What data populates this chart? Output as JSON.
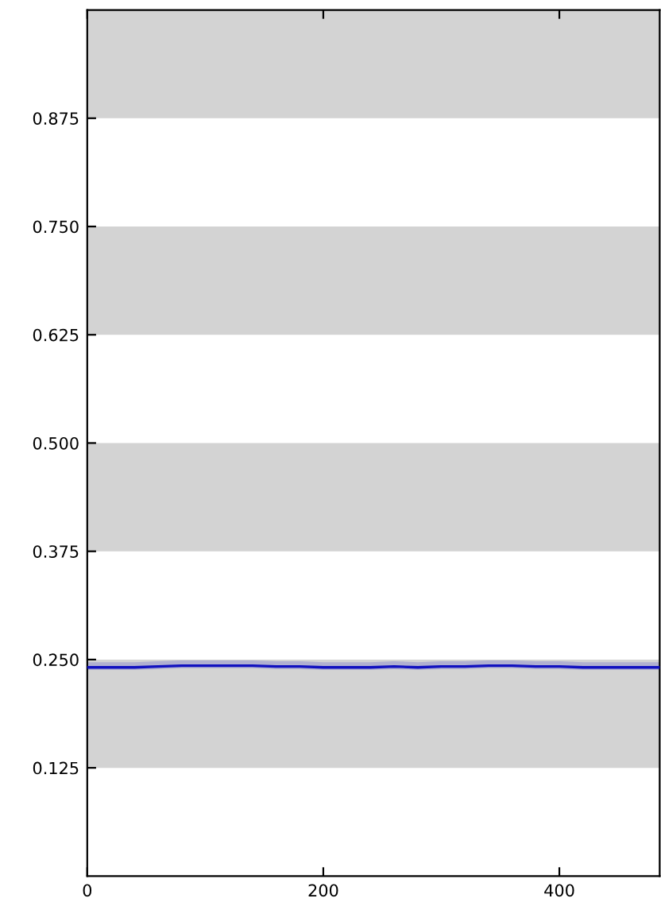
{
  "chart_data": {
    "type": "line",
    "xlim": [
      0,
      485
    ],
    "ylim": [
      0,
      1
    ],
    "xticks": [
      0,
      200,
      400
    ],
    "yticks": [
      0.125,
      {
        "value": 0.25,
        "label": "0.250"
      },
      0.375,
      {
        "value": 0.5,
        "label": "0.500"
      },
      0.625,
      {
        "value": 0.75,
        "label": "0.750"
      },
      0.875
    ],
    "bands": [
      {
        "axis": "y",
        "from": 0.125,
        "to": 0.25,
        "color": "#d3d3d3"
      },
      {
        "axis": "y",
        "from": 0.375,
        "to": 0.5,
        "color": "#d3d3d3"
      },
      {
        "axis": "y",
        "from": 0.625,
        "to": 0.75,
        "color": "#d3d3d3"
      },
      {
        "axis": "y",
        "from": 0.875,
        "to": 1.0,
        "color": "#d3d3d3"
      }
    ],
    "series": [
      {
        "color": "#1010c0",
        "x": [
          0,
          20,
          40,
          60,
          80,
          100,
          120,
          140,
          160,
          180,
          200,
          220,
          240,
          260,
          280,
          300,
          320,
          340,
          360,
          380,
          400,
          420,
          440,
          460,
          485
        ],
        "values": [
          0.241,
          0.241,
          0.241,
          0.242,
          0.243,
          0.243,
          0.243,
          0.243,
          0.242,
          0.242,
          0.241,
          0.241,
          0.241,
          0.242,
          0.241,
          0.242,
          0.242,
          0.243,
          0.243,
          0.242,
          0.242,
          0.241,
          0.241,
          0.241,
          0.241
        ],
        "lower": [
          0.238,
          0.238,
          0.238,
          0.239,
          0.24,
          0.24,
          0.24,
          0.24,
          0.239,
          0.239,
          0.238,
          0.238,
          0.238,
          0.239,
          0.238,
          0.239,
          0.239,
          0.24,
          0.24,
          0.239,
          0.239,
          0.238,
          0.238,
          0.238,
          0.238
        ],
        "upper": [
          0.247,
          0.247,
          0.247,
          0.248,
          0.249,
          0.249,
          0.249,
          0.249,
          0.248,
          0.248,
          0.247,
          0.247,
          0.247,
          0.248,
          0.247,
          0.248,
          0.248,
          0.249,
          0.249,
          0.248,
          0.248,
          0.247,
          0.247,
          0.247,
          0.247
        ]
      }
    ],
    "grid": false,
    "legend": false,
    "marker": "none",
    "line_style": "solid"
  }
}
